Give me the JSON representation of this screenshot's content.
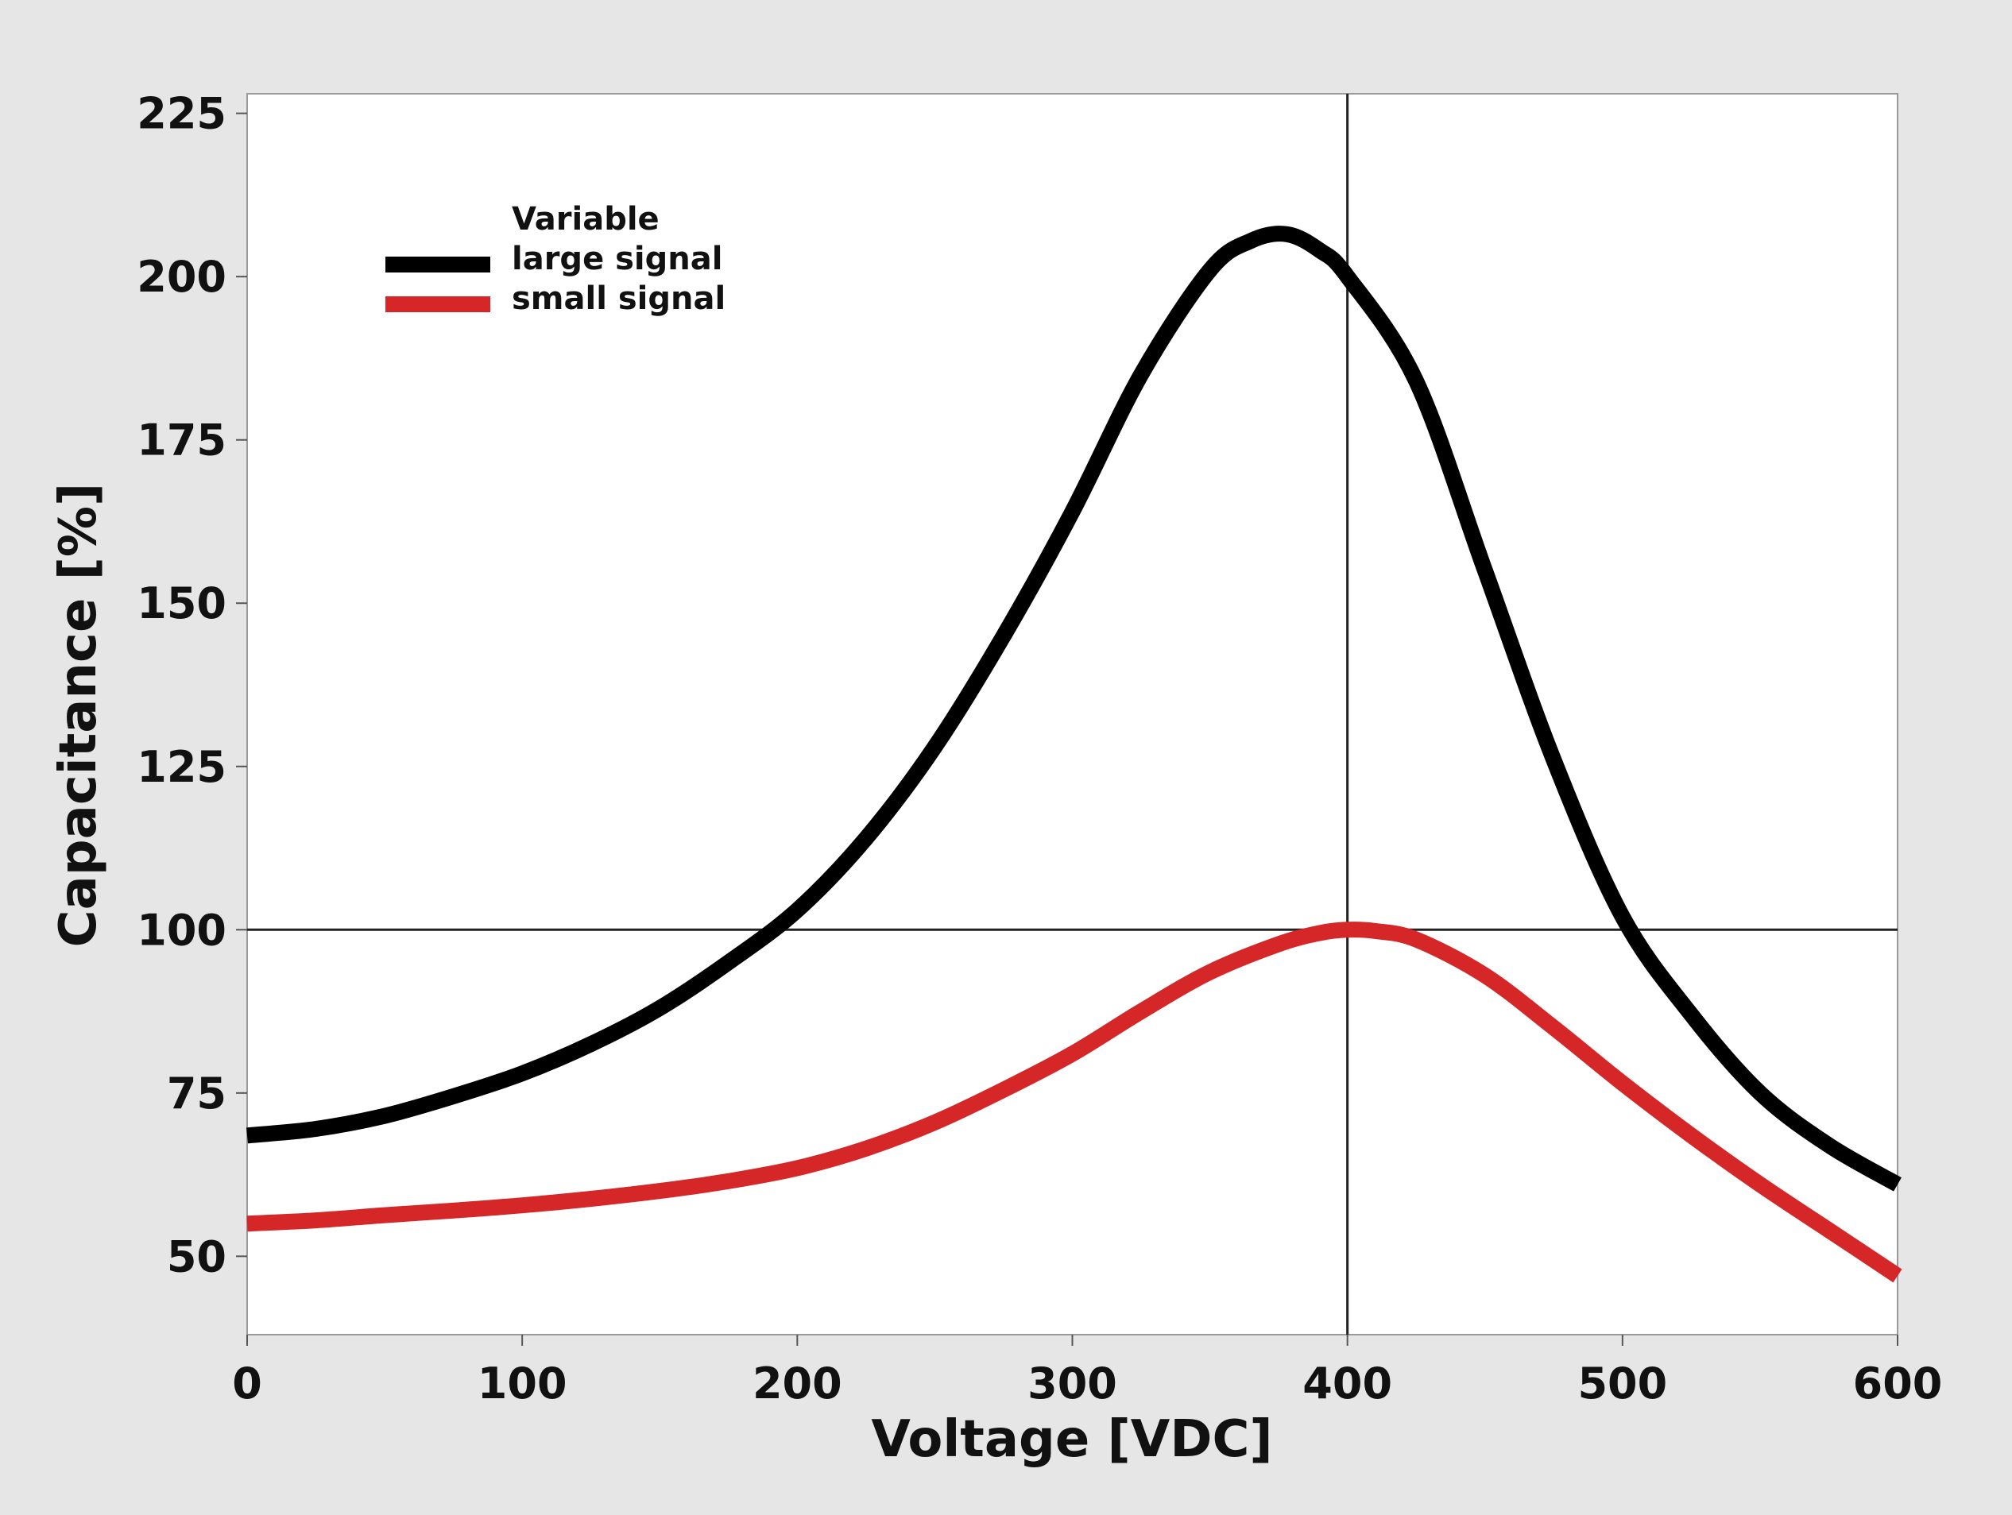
{
  "chart_data": {
    "type": "line",
    "title": "",
    "xlabel": "Voltage [VDC]",
    "ylabel": "Capacitance [%]",
    "xlim": [
      0,
      600
    ],
    "ylim": [
      38,
      228
    ],
    "xticks": [
      0,
      100,
      200,
      300,
      400,
      500,
      600
    ],
    "yticks": [
      50,
      75,
      100,
      125,
      150,
      175,
      200,
      225
    ],
    "reference_lines": {
      "x": 400,
      "y": 100
    },
    "legend": {
      "title": "Variable",
      "position": "top-left"
    },
    "series": [
      {
        "name": "large signal",
        "color": "#000000",
        "x": [
          0,
          25,
          50,
          75,
          100,
          125,
          150,
          175,
          200,
          225,
          250,
          275,
          300,
          325,
          350,
          365,
          378,
          390,
          400,
          425,
          450,
          475,
          500,
          525,
          550,
          575,
          600
        ],
        "y": [
          68.5,
          69.5,
          71.5,
          74.5,
          78,
          82.5,
          88,
          95,
          103,
          114,
          128,
          145,
          164,
          185,
          201,
          205.5,
          206.5,
          204,
          200,
          184,
          155,
          126,
          102,
          87,
          75,
          67,
          61
        ]
      },
      {
        "name": "small signal",
        "color": "#d62728",
        "x": [
          0,
          25,
          50,
          75,
          100,
          125,
          150,
          175,
          200,
          225,
          250,
          275,
          300,
          325,
          350,
          375,
          390,
          400,
          410,
          425,
          450,
          475,
          500,
          525,
          550,
          575,
          600
        ],
        "y": [
          55,
          55.5,
          56.3,
          57,
          57.8,
          58.8,
          60,
          61.5,
          63.5,
          66.5,
          70.5,
          75.5,
          81,
          87.5,
          93.5,
          97.8,
          99.5,
          100,
          99.8,
          98.5,
          93,
          85,
          76.5,
          68.5,
          61,
          54,
          47
        ]
      }
    ]
  }
}
